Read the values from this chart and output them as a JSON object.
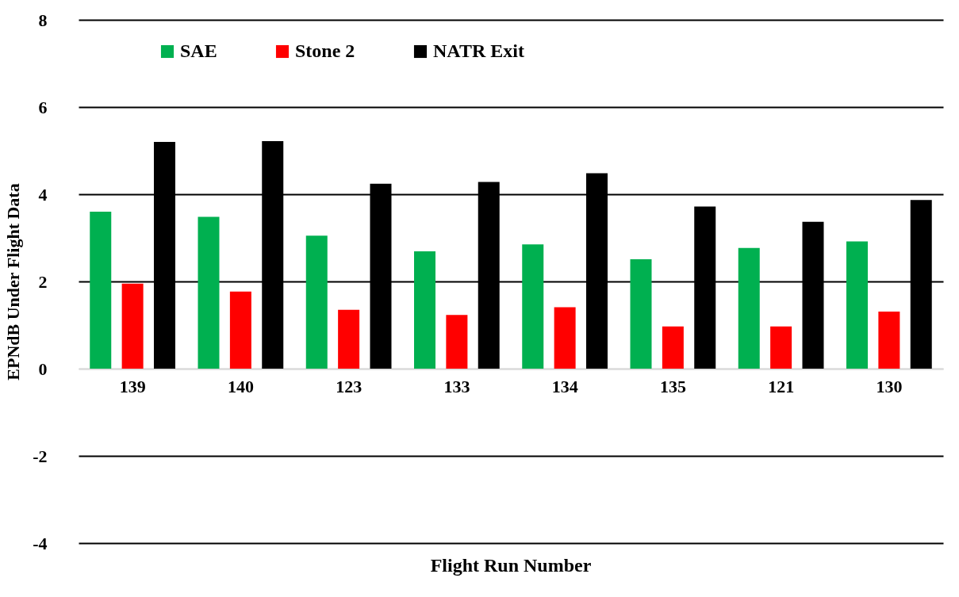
{
  "chart_data": {
    "type": "bar",
    "xlabel": "Flight Run Number",
    "ylabel": "EPNdB Under Flight Data",
    "categories": [
      "139",
      "140",
      "123",
      "133",
      "134",
      "135",
      "121",
      "130"
    ],
    "series": [
      {
        "name": "SAE",
        "color": "#00b050",
        "values": [
          3.6,
          3.48,
          3.05,
          2.69,
          2.85,
          2.51,
          2.77,
          2.92
        ]
      },
      {
        "name": "Stone 2",
        "color": "#ff0000",
        "values": [
          1.95,
          1.77,
          1.35,
          1.23,
          1.41,
          0.97,
          0.97,
          1.31
        ]
      },
      {
        "name": "NATR Exit",
        "color": "#000000",
        "values": [
          5.2,
          5.22,
          4.24,
          4.28,
          4.48,
          3.72,
          3.37,
          3.87
        ]
      }
    ],
    "ylim": [
      -4,
      8
    ],
    "yticks": [
      -4,
      -2,
      0,
      2,
      4,
      6,
      8
    ],
    "grid": "y",
    "legend": "top left"
  }
}
